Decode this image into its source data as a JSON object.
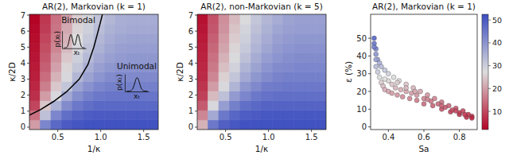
{
  "chart_data": [
    {
      "type": "heatmap",
      "title": "AR(2), Markovian (k = 1)",
      "x_label": "1/κ",
      "y_label": "κ/2D",
      "xlim": [
        0.17,
        1.67
      ],
      "ylim": [
        -0.15,
        7.05
      ],
      "xticks": [
        0.5,
        {
          "value": 1,
          "label": "1.0"
        },
        1.5
      ],
      "yticks": [
        0,
        1,
        2,
        3,
        4,
        5,
        6,
        7
      ],
      "x_edges": [
        0.17,
        0.295,
        0.42,
        0.545,
        0.67,
        0.795,
        0.92,
        1.045,
        1.17,
        1.295,
        1.42,
        1.545,
        1.67
      ],
      "y_edges": [
        -0.15,
        0.45,
        1.05,
        1.65,
        2.25,
        2.85,
        3.45,
        4.05,
        4.65,
        5.25,
        5.85,
        6.45,
        7.05
      ],
      "zlim": [
        0,
        1
      ],
      "z": [
        [
          0.35,
          0.8,
          0.9,
          0.95,
          0.97,
          0.98,
          0.98,
          0.98,
          0.98,
          0.98,
          0.98,
          0.98
        ],
        [
          0.25,
          0.6,
          0.8,
          0.88,
          0.92,
          0.94,
          0.95,
          0.95,
          0.95,
          0.95,
          0.95,
          0.95
        ],
        [
          0.15,
          0.45,
          0.65,
          0.78,
          0.85,
          0.88,
          0.9,
          0.9,
          0.9,
          0.9,
          0.9,
          0.9
        ],
        [
          0.1,
          0.35,
          0.52,
          0.68,
          0.77,
          0.82,
          0.85,
          0.86,
          0.86,
          0.86,
          0.86,
          0.86
        ],
        [
          0.08,
          0.28,
          0.45,
          0.58,
          0.7,
          0.76,
          0.8,
          0.82,
          0.82,
          0.82,
          0.82,
          0.82
        ],
        [
          0.06,
          0.24,
          0.4,
          0.52,
          0.63,
          0.7,
          0.75,
          0.78,
          0.79,
          0.79,
          0.79,
          0.79
        ],
        [
          0.05,
          0.21,
          0.36,
          0.48,
          0.58,
          0.66,
          0.71,
          0.74,
          0.76,
          0.76,
          0.76,
          0.76
        ],
        [
          0.04,
          0.19,
          0.33,
          0.45,
          0.55,
          0.62,
          0.68,
          0.71,
          0.73,
          0.74,
          0.74,
          0.74
        ],
        [
          0.03,
          0.17,
          0.3,
          0.42,
          0.52,
          0.59,
          0.65,
          0.69,
          0.71,
          0.72,
          0.72,
          0.72
        ],
        [
          0.02,
          0.15,
          0.28,
          0.4,
          0.5,
          0.57,
          0.63,
          0.67,
          0.69,
          0.7,
          0.7,
          0.7
        ],
        [
          0.01,
          0.13,
          0.26,
          0.38,
          0.48,
          0.55,
          0.61,
          0.65,
          0.67,
          0.68,
          0.68,
          0.68
        ],
        [
          0.0,
          0.12,
          0.25,
          0.36,
          0.46,
          0.53,
          0.59,
          0.63,
          0.66,
          0.67,
          0.67,
          0.67
        ]
      ],
      "series": [
        {
          "type": "line",
          "color": "#000000",
          "x": [
            0.17,
            0.3,
            0.45,
            0.6,
            0.75,
            0.85,
            0.92,
            0.97,
            1.02
          ],
          "values": [
            0.75,
            1.1,
            1.6,
            2.2,
            3.0,
            3.9,
            5.0,
            6.0,
            7.05
          ]
        }
      ],
      "annotations": [
        {
          "label": "Bimodal",
          "x": 0.74,
          "y": 6.5,
          "modes": 2,
          "ylabel": "p(xₜ)",
          "ylabel_x": 0.49,
          "ylabel_y": 5.5,
          "xlabel": "xₜ",
          "xlabel_x": 0.72,
          "xlabel_y": 4.5
        },
        {
          "label": "Unimodal",
          "x": 1.42,
          "y": 3.6,
          "modes": 1,
          "ylabel": "p(xₜ)",
          "ylabel_x": 1.22,
          "ylabel_y": 2.8,
          "xlabel": "xₜ",
          "xlabel_x": 1.42,
          "xlabel_y": 1.8
        }
      ]
    },
    {
      "type": "heatmap",
      "title": "AR(2), non-Markovian (k = 5)",
      "x_label": "1/κ",
      "y_label": "κ/2D",
      "xlim": [
        0.17,
        1.67
      ],
      "ylim": [
        -0.15,
        7.05
      ],
      "xticks": [
        0.5,
        {
          "value": 1,
          "label": "1.0"
        },
        1.5
      ],
      "yticks": [
        0,
        1,
        2,
        3,
        4,
        5,
        6,
        7
      ],
      "x_edges": [
        0.17,
        0.295,
        0.42,
        0.545,
        0.67,
        0.795,
        0.92,
        1.045,
        1.17,
        1.295,
        1.42,
        1.545,
        1.67
      ],
      "y_edges": [
        -0.15,
        0.45,
        1.05,
        1.65,
        2.25,
        2.85,
        3.45,
        4.05,
        4.65,
        5.25,
        5.85,
        6.45,
        7.05
      ],
      "zlim": [
        0,
        1
      ],
      "z": [
        [
          0.4,
          0.85,
          0.93,
          0.96,
          0.98,
          0.98,
          0.98,
          0.98,
          0.98,
          0.98,
          0.98,
          0.98
        ],
        [
          0.3,
          0.68,
          0.85,
          0.91,
          0.94,
          0.95,
          0.96,
          0.96,
          0.96,
          0.96,
          0.96,
          0.96
        ],
        [
          0.2,
          0.52,
          0.72,
          0.82,
          0.88,
          0.9,
          0.92,
          0.92,
          0.92,
          0.92,
          0.92,
          0.92
        ],
        [
          0.14,
          0.42,
          0.6,
          0.73,
          0.8,
          0.85,
          0.87,
          0.88,
          0.88,
          0.88,
          0.88,
          0.88
        ],
        [
          0.11,
          0.35,
          0.52,
          0.64,
          0.74,
          0.79,
          0.83,
          0.84,
          0.85,
          0.85,
          0.85,
          0.85
        ],
        [
          0.09,
          0.3,
          0.47,
          0.58,
          0.68,
          0.74,
          0.78,
          0.81,
          0.82,
          0.82,
          0.82,
          0.82
        ],
        [
          0.08,
          0.27,
          0.43,
          0.54,
          0.64,
          0.7,
          0.75,
          0.78,
          0.79,
          0.8,
          0.8,
          0.8
        ],
        [
          0.07,
          0.25,
          0.4,
          0.51,
          0.6,
          0.67,
          0.72,
          0.75,
          0.77,
          0.78,
          0.78,
          0.78
        ],
        [
          0.06,
          0.23,
          0.37,
          0.48,
          0.57,
          0.64,
          0.69,
          0.73,
          0.75,
          0.76,
          0.76,
          0.76
        ],
        [
          0.05,
          0.21,
          0.35,
          0.46,
          0.55,
          0.62,
          0.67,
          0.71,
          0.73,
          0.74,
          0.74,
          0.74
        ],
        [
          0.04,
          0.19,
          0.33,
          0.44,
          0.53,
          0.6,
          0.65,
          0.69,
          0.71,
          0.72,
          0.72,
          0.72
        ],
        [
          0.03,
          0.18,
          0.32,
          0.42,
          0.51,
          0.58,
          0.63,
          0.67,
          0.7,
          0.71,
          0.71,
          0.71
        ]
      ]
    },
    {
      "type": "scatter",
      "title": "AR(2), Markovian (k = 1)",
      "x_label": "Sa",
      "y_label": "ε (%)",
      "xlim": [
        0.3,
        0.9
      ],
      "ylim": [
        -1.5,
        63.5
      ],
      "xticks": [
        0.4,
        0.6,
        0.8
      ],
      "yticks": [
        0,
        10,
        20,
        30,
        40,
        50
      ],
      "colorbar": {
        "range": [
          2,
          52.5
        ],
        "ticks": [
          10,
          20,
          30,
          40,
          50
        ]
      },
      "x": [
        0.32,
        0.32,
        0.33,
        0.33,
        0.34,
        0.35,
        0.36,
        0.38,
        0.4,
        0.43,
        0.46,
        0.5,
        0.54,
        0.58,
        0.62,
        0.66,
        0.7,
        0.74,
        0.78,
        0.82,
        0.85,
        0.87,
        0.32,
        0.33,
        0.33,
        0.34,
        0.35,
        0.36,
        0.37,
        0.38,
        0.4,
        0.42,
        0.45,
        0.48,
        0.52,
        0.56,
        0.6,
        0.65,
        0.7,
        0.75,
        0.8,
        0.84,
        0.87,
        0.4,
        0.42,
        0.44,
        0.47,
        0.5,
        0.53,
        0.56,
        0.6,
        0.64,
        0.68,
        0.72,
        0.76,
        0.8,
        0.83,
        0.38,
        0.45,
        0.5,
        0.55,
        0.62,
        0.7,
        0.78
      ],
      "values": [
        50,
        47,
        44,
        41,
        38,
        36,
        34,
        32,
        30,
        28,
        26,
        24,
        22,
        20,
        18,
        16,
        14,
        12,
        10.5,
        9,
        7,
        6,
        45,
        38,
        34,
        31,
        28,
        25,
        23,
        21,
        20,
        19,
        18,
        17,
        16,
        15,
        13,
        12,
        10,
        8.5,
        7,
        5.5,
        5,
        26,
        24,
        22,
        21,
        20,
        19,
        18,
        16,
        14.5,
        13,
        11,
        9.5,
        8,
        7,
        27,
        25,
        22,
        20,
        15.5,
        12,
        9
      ]
    }
  ]
}
